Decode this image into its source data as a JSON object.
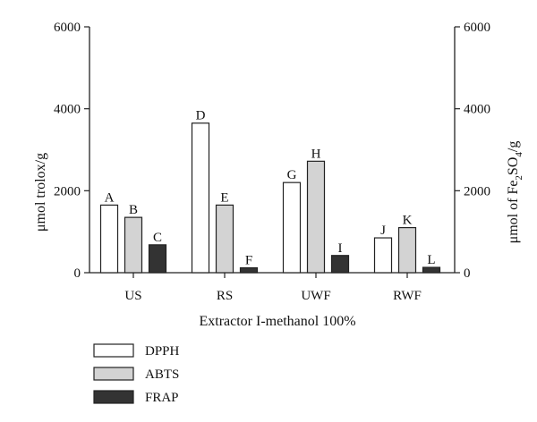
{
  "chart_data": {
    "type": "bar",
    "categories": [
      "US",
      "RS",
      "UWF",
      "RWF"
    ],
    "series": [
      {
        "name": "DPPH",
        "color": "#ffffff",
        "values": [
          1650,
          3650,
          2200,
          850
        ],
        "labels": [
          "A",
          "D",
          "G",
          "J"
        ]
      },
      {
        "name": "ABTS",
        "color": "#d3d3d3",
        "values": [
          1350,
          1650,
          2720,
          1100
        ],
        "labels": [
          "B",
          "E",
          "H",
          "K"
        ]
      },
      {
        "name": "FRAP",
        "color": "#333333",
        "values": [
          680,
          120,
          420,
          130
        ],
        "labels": [
          "C",
          "F",
          "I",
          "L"
        ]
      }
    ],
    "xlabel": "Extractor I-methanol 100%",
    "ylabel": "μmol trolox/g",
    "y2label": {
      "prefix": "μmol of Fe",
      "sub1": "2",
      "mid": "SO",
      "sub2": "4",
      "suffix": "/g"
    },
    "ylim": [
      0,
      6000
    ],
    "yticks": [
      "0",
      "2000",
      "4000",
      "6000"
    ],
    "y2ticks": [
      "0",
      "2000",
      "4000",
      "6000"
    ],
    "grid": false,
    "legend_position": "bottom-left"
  }
}
